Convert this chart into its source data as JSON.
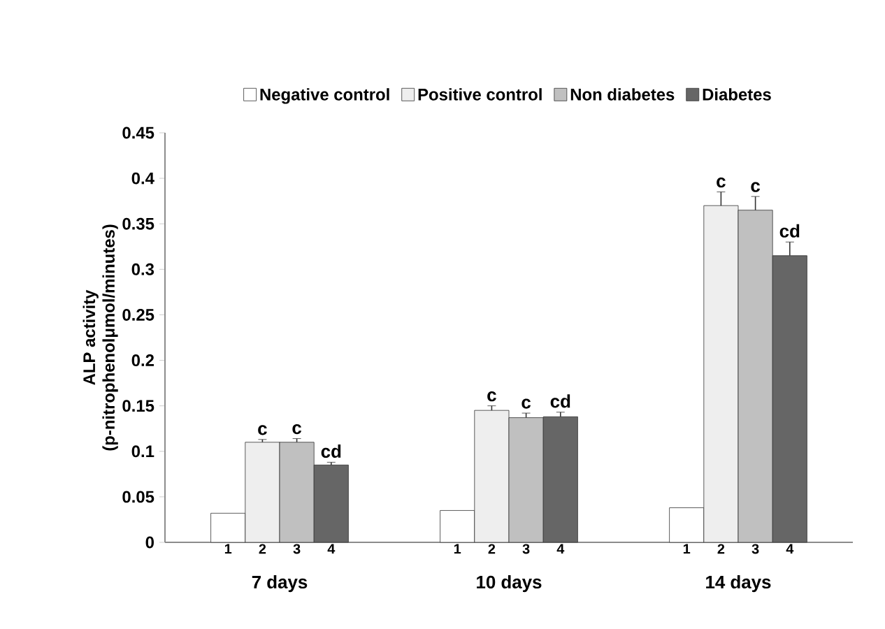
{
  "chart_data": {
    "type": "bar",
    "ylabel": "ALP activity\n(p-nitrophenolμmol/minutes)",
    "categories": [
      "7 days",
      "10 days",
      "14 days"
    ],
    "series": [
      {
        "name": "Negative control",
        "color": "#ffffff",
        "values": [
          0.032,
          0.035,
          0.038
        ]
      },
      {
        "name": "Positive control",
        "color": "#eeeeee",
        "values": [
          0.11,
          0.145,
          0.37
        ],
        "errors": [
          0.003,
          0.005,
          0.015
        ]
      },
      {
        "name": "Non diabetes",
        "color": "#c0c0c0",
        "values": [
          0.11,
          0.137,
          0.365
        ],
        "errors": [
          0.004,
          0.005,
          0.015
        ]
      },
      {
        "name": "Diabetes",
        "color": "#666666",
        "values": [
          0.085,
          0.138,
          0.315
        ],
        "errors": [
          0.003,
          0.005,
          0.015
        ]
      }
    ],
    "ylim": [
      0,
      0.45
    ],
    "yticks": [
      0,
      0.05,
      0.1,
      0.15,
      0.2,
      0.25,
      0.3,
      0.35,
      0.4,
      0.45
    ],
    "legend": "top",
    "grid": false,
    "annotations": [
      {
        "text": "c",
        "x": "7 days",
        "y": 0.113
      },
      {
        "text": "c",
        "x": "7 days",
        "y": 0.114
      },
      {
        "text": "cd",
        "x": "7 days",
        "y": 0.088
      },
      {
        "text": "c",
        "x": "10 days",
        "y": 0.15
      },
      {
        "text": "c",
        "x": "10 days",
        "y": 0.142
      },
      {
        "text": "cd",
        "x": "10 days",
        "y": 0.143
      },
      {
        "text": "c",
        "x": "14 days",
        "y": 0.37
      },
      {
        "text": "c",
        "x": "14 days",
        "y": 0.365
      },
      {
        "text": "cd",
        "x": "14 days",
        "y": 0.33
      },
      "1",
      "2",
      "3",
      "4",
      "1",
      "2",
      "3",
      "4",
      "1",
      "2",
      "3",
      "4"
    ]
  }
}
